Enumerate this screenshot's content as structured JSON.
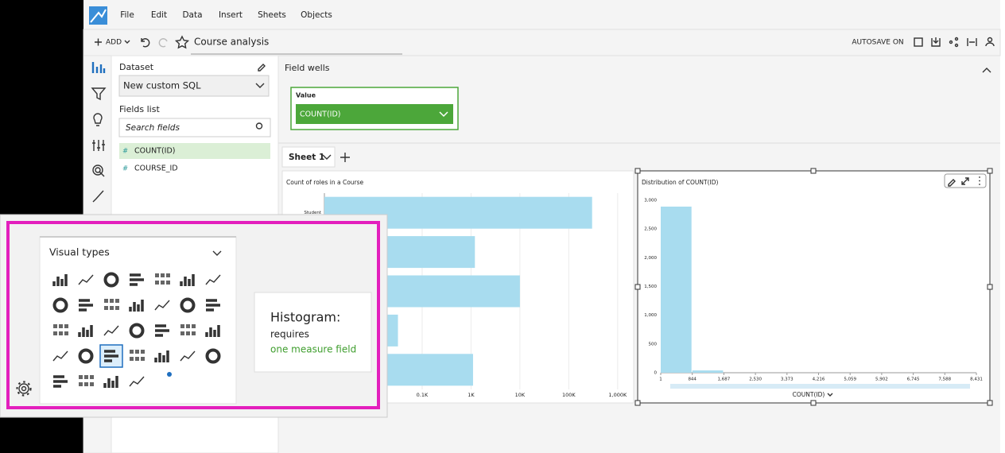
{
  "menu": [
    "File",
    "Edit",
    "Data",
    "Insert",
    "Sheets",
    "Objects"
  ],
  "toolbar": {
    "add": "ADD",
    "analysis_name": "Course analysis",
    "autosave": "AUTOSAVE ON"
  },
  "dataset_panel": {
    "dataset_label": "Dataset",
    "dataset": "New custom SQL",
    "fields_label": "Fields list",
    "search_placeholder": "Search fields",
    "fields": [
      {
        "icon": "#",
        "name": "COUNT(ID)"
      },
      {
        "icon": "#",
        "name": "COURSE_ID"
      }
    ]
  },
  "field_wells": {
    "title": "Field wells",
    "value_label": "Value",
    "value_field": "COUNT(ID)"
  },
  "sheet_tabs": [
    "Sheet 1"
  ],
  "visual_types": {
    "title": "Visual types"
  },
  "tooltip": {
    "title": "Histogram:",
    "line1": "requires",
    "line2": "one measure field"
  },
  "chart_data": [
    {
      "type": "bar",
      "orientation": "horizontal",
      "title": "Count of roles in a Course",
      "categories": [
        "Student",
        null,
        null,
        null,
        null
      ],
      "values": [
        300000,
        1200,
        10000,
        32,
        1100
      ],
      "color": "#a8dcef",
      "log_scale": true,
      "xlim": [
        1,
        1700000
      ],
      "xticks": [
        {
          "value": 100,
          "label": "0.1K"
        },
        {
          "value": 1000,
          "label": "1K"
        },
        {
          "value": 10000,
          "label": "10K"
        },
        {
          "value": 100000,
          "label": "100K"
        },
        {
          "value": 1000000,
          "label": "1,000K"
        }
      ],
      "grid": true
    },
    {
      "type": "histogram",
      "title": "Distribution of COUNT(ID)",
      "x_label": "COUNT(ID)",
      "bins": [
        1,
        844,
        1687,
        2530,
        3373,
        4216,
        5059,
        5902,
        6745,
        7588,
        8431
      ],
      "counts": [
        2890,
        40,
        0,
        0,
        0,
        0,
        0,
        0,
        0,
        0
      ],
      "color": "#a8dcef",
      "xlim": [
        1,
        8431
      ],
      "ylim": [
        0,
        3000
      ],
      "xticks": [
        1,
        844,
        {
          "value": 1687,
          "label": "1,687"
        },
        {
          "value": 2530,
          "label": "2,530"
        },
        {
          "value": 3373,
          "label": "3,373"
        },
        {
          "value": 4216,
          "label": "4,216"
        },
        {
          "value": 5059,
          "label": "5,059"
        },
        {
          "value": 5902,
          "label": "5,902"
        },
        {
          "value": 6745,
          "label": "6,745"
        },
        {
          "value": 7588,
          "label": "7,588"
        },
        {
          "value": 8431,
          "label": "8,431"
        }
      ],
      "yticks": [
        0,
        500,
        {
          "value": 1000,
          "label": "1,000"
        },
        {
          "value": 1500,
          "label": "1,500"
        },
        {
          "value": 2000,
          "label": "2,000"
        },
        {
          "value": 2500,
          "label": "2,500"
        },
        {
          "value": 3000,
          "label": "3,000"
        }
      ],
      "grid": false
    }
  ]
}
